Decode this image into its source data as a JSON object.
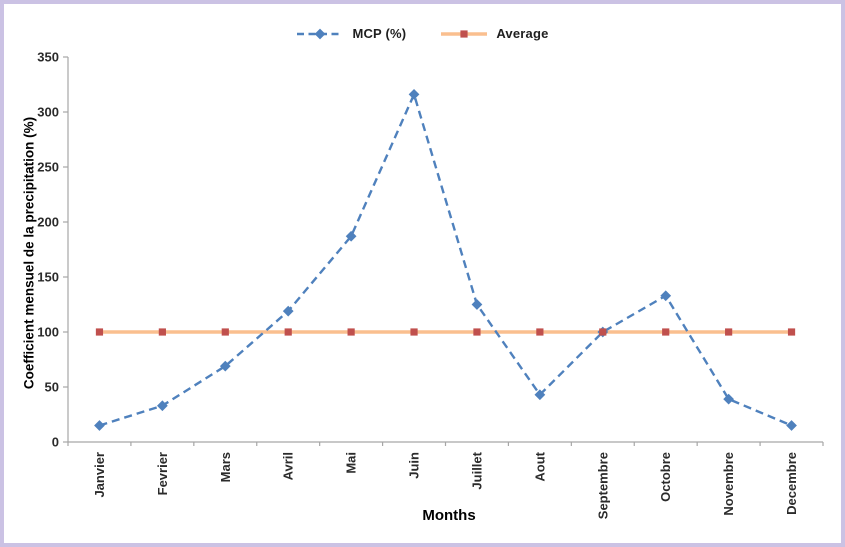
{
  "frame": {
    "border_color": "#cbc2e4",
    "background": "#ffffff"
  },
  "legend": {
    "position": "top-center",
    "items": [
      {
        "label": "MCP (%)",
        "swatch": "blue-dashed-diamond"
      },
      {
        "label": "Average",
        "swatch": "orange-line-red-square"
      }
    ]
  },
  "chart_data": {
    "type": "line",
    "title": "",
    "xlabel": "Months",
    "ylabel": "Coefficient mensuel de la precipitation (%)",
    "categories": [
      "Janvier",
      "Fevrier",
      "Mars",
      "Avril",
      "Mai",
      "Juin",
      "Juillet",
      "Aout",
      "Septembre",
      "Octobre",
      "Novembre",
      "Decembre"
    ],
    "series": [
      {
        "name": "MCP (%)",
        "values": [
          15,
          33,
          69,
          119,
          187,
          316,
          125,
          43,
          100,
          133,
          39,
          15
        ],
        "color": "#4f81bd",
        "line_style": "dashed",
        "marker": "diamond",
        "marker_color": "#4f81bd"
      },
      {
        "name": "Average",
        "values": [
          100,
          100,
          100,
          100,
          100,
          100,
          100,
          100,
          100,
          100,
          100,
          100
        ],
        "color": "#fabf8f",
        "line_style": "solid",
        "marker": "square",
        "marker_color": "#c0504d"
      }
    ],
    "ylim": [
      0,
      350
    ],
    "yticks": [
      0,
      50,
      100,
      150,
      200,
      250,
      300,
      350
    ],
    "grid": false,
    "legend_position": "top",
    "axis_color": "#a6a6a6",
    "tick_label_color": "#2b2b2b"
  }
}
